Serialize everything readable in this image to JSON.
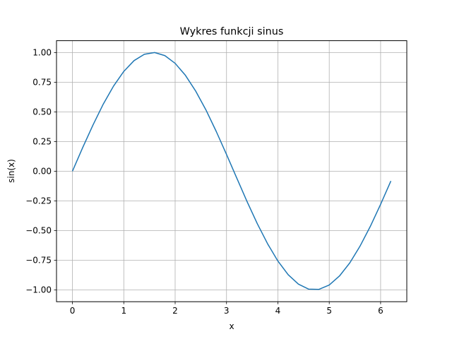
{
  "chart_data": {
    "type": "line",
    "title": "Wykres funkcji sinus",
    "xlabel": "x",
    "ylabel": "sin(x)",
    "xlim": [
      -0.31,
      6.51
    ],
    "ylim": [
      -1.1,
      1.1
    ],
    "xticks": [
      0,
      1,
      2,
      3,
      4,
      5,
      6
    ],
    "xtick_labels": [
      "0",
      "1",
      "2",
      "3",
      "4",
      "5",
      "6"
    ],
    "yticks": [
      -1.0,
      -0.75,
      -0.5,
      -0.25,
      0.0,
      0.25,
      0.5,
      0.75,
      1.0
    ],
    "ytick_labels": [
      "−1.00",
      "−0.75",
      "−0.50",
      "−0.25",
      "0.00",
      "0.25",
      "0.50",
      "0.75",
      "1.00"
    ],
    "grid": true,
    "series": [
      {
        "color": "#1f77b4",
        "x": [
          0.0,
          0.2,
          0.4,
          0.6,
          0.8,
          1.0,
          1.2,
          1.4,
          1.6,
          1.8,
          2.0,
          2.2,
          2.4,
          2.6,
          2.8,
          3.0,
          3.2,
          3.4,
          3.6,
          3.8,
          4.0,
          4.2,
          4.4,
          4.6,
          4.8,
          5.0,
          5.2,
          5.4,
          5.6,
          5.8,
          6.0,
          6.2
        ],
        "y": [
          0.0,
          0.199,
          0.389,
          0.565,
          0.717,
          0.841,
          0.932,
          0.985,
          1.0,
          0.974,
          0.909,
          0.808,
          0.675,
          0.516,
          0.335,
          0.141,
          -0.058,
          -0.256,
          -0.443,
          -0.612,
          -0.757,
          -0.872,
          -0.952,
          -0.994,
          -0.996,
          -0.959,
          -0.883,
          -0.773,
          -0.631,
          -0.465,
          -0.279,
          -0.083
        ]
      }
    ]
  }
}
